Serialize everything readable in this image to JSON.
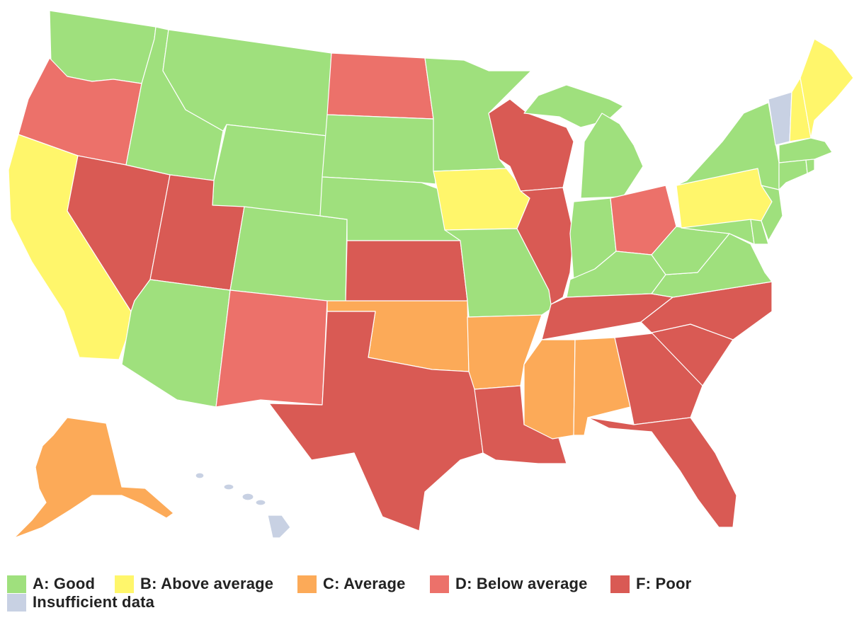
{
  "grade_colors": {
    "A": "#9fe07d",
    "B": "#fff66b",
    "C": "#fcaa58",
    "D": "#ec716a",
    "F": "#d95a54",
    "N": "#c8d1e3"
  },
  "legend": [
    {
      "key": "A",
      "label": "A: Good",
      "color": "#9fe07d"
    },
    {
      "key": "B",
      "label": "B: Above average",
      "color": "#fff66b"
    },
    {
      "key": "C",
      "label": "C: Average",
      "color": "#fcaa58"
    },
    {
      "key": "D",
      "label": "D: Below average",
      "color": "#ec716a"
    },
    {
      "key": "F",
      "label": "F: Poor",
      "color": "#d95a54"
    },
    {
      "key": "N",
      "label": "Insufficient data",
      "color": "#c8d1e3"
    }
  ],
  "state_grades": {
    "WA": "A",
    "OR": "D",
    "CA": "B",
    "NV": "F",
    "ID": "A",
    "MT": "A",
    "WY": "A",
    "UT": "F",
    "AZ": "A",
    "CO": "A",
    "NM": "D",
    "ND": "D",
    "SD": "A",
    "NE": "A",
    "KS": "F",
    "OK": "C",
    "TX": "F",
    "MN": "A",
    "IA": "B",
    "MO": "A",
    "AR": "C",
    "LA": "F",
    "WI": "F",
    "IL": "F",
    "MI": "A",
    "IN": "A",
    "OH": "D",
    "KY": "A",
    "TN": "F",
    "MS": "C",
    "AL": "C",
    "GA": "F",
    "FL": "F",
    "SC": "F",
    "NC": "F",
    "VA": "A",
    "WV": "A",
    "MD": "A",
    "DE": "A",
    "PA": "B",
    "NJ": "A",
    "NY": "A",
    "CT": "A",
    "RI": "A",
    "MA": "A",
    "VT": "N",
    "NH": "B",
    "ME": "B",
    "AK": "C",
    "HI": "N"
  }
}
